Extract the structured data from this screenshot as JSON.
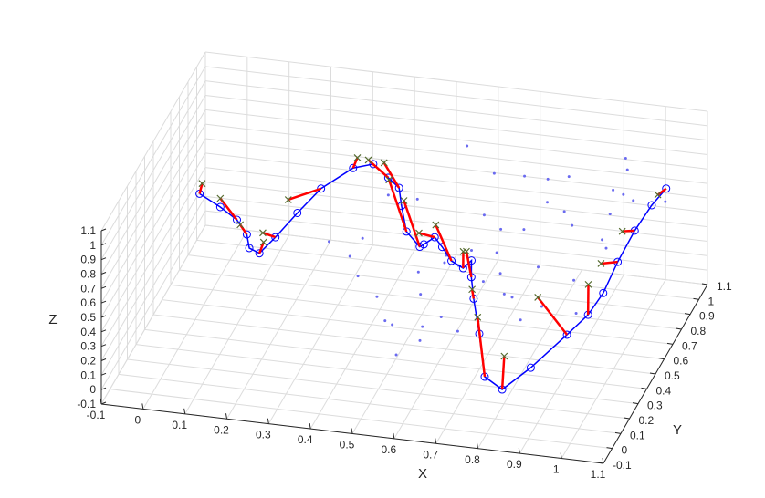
{
  "chart_data": {
    "type": "scatter3d",
    "title": "",
    "xlabel": "X",
    "ylabel": "Y",
    "zlabel": "Z",
    "xlim": [
      -0.1,
      1.1
    ],
    "ylim": [
      -0.1,
      1.1
    ],
    "zlim": [
      -0.1,
      1.1
    ],
    "grid": true,
    "x_ticks": [
      "-0.1",
      "0",
      "0.1",
      "0.2",
      "0.3",
      "0.4",
      "0.5",
      "0.6",
      "0.7",
      "0.8",
      "0.9",
      "1",
      "1.1"
    ],
    "y_ticks": [
      "-0.1",
      "0",
      "0.1",
      "0.2",
      "0.3",
      "0.4",
      "0.5",
      "0.6",
      "0.7",
      "0.8",
      "0.9",
      "1",
      "1.1"
    ],
    "z_ticks": [
      "-0.1",
      "0",
      "0.1",
      "0.2",
      "0.3",
      "0.4",
      "0.5",
      "0.6",
      "0.7",
      "0.8",
      "0.9",
      "1",
      "1.1"
    ],
    "colors": {
      "scatter": "#6a6af0",
      "curve": "#0000ff",
      "arrow": "#ff0000",
      "cross": "#556b2f",
      "grid": "#dcdcdc",
      "axis": "#262626"
    },
    "scatter_points": [
      [
        0.6,
        0.74,
        1.06
      ],
      [
        0.67,
        0.44,
        0.55
      ],
      [
        0.83,
        0.15,
        0.7
      ],
      [
        0.85,
        0.15,
        0.55
      ],
      [
        0.63,
        0.08,
        0.5
      ],
      [
        0.75,
        0.4,
        0.58
      ],
      [
        0.67,
        0.6,
        0.75
      ],
      [
        0.72,
        0.55,
        0.72
      ],
      [
        0.83,
        0.45,
        0.6
      ],
      [
        0.88,
        0.6,
        0.75
      ],
      [
        0.95,
        0.7,
        0.75
      ],
      [
        0.8,
        0.7,
        0.78
      ],
      [
        0.56,
        0.07,
        0.5
      ],
      [
        0.88,
        0.25,
        0.55
      ],
      [
        0.6,
        0.5,
        0.55
      ],
      [
        0.9,
        0.85,
        0.4
      ],
      [
        0.95,
        0.88,
        0.95
      ],
      [
        0.95,
        0.9,
        0.85
      ],
      [
        0.92,
        0.88,
        0.72
      ],
      [
        0.96,
        0.92,
        0.62
      ],
      [
        1.02,
        1.0,
        0.55
      ],
      [
        0.92,
        0.8,
        0.4
      ],
      [
        0.88,
        0.62,
        0.35
      ],
      [
        0.5,
        0.65,
        0.75
      ],
      [
        0.78,
        0.3,
        0.55
      ],
      [
        0.73,
        0.3,
        0.62
      ],
      [
        0.65,
        0.4,
        0.6
      ],
      [
        0.76,
        0.9,
        0.72
      ],
      [
        0.82,
        0.8,
        0.62
      ],
      [
        0.74,
        0.72,
        0.55
      ],
      [
        0.7,
        0.6,
        0.5
      ],
      [
        0.65,
        0.55,
        0.55
      ],
      [
        0.6,
        0.48,
        0.52
      ],
      [
        0.55,
        0.42,
        0.5
      ],
      [
        0.58,
        0.3,
        0.48
      ],
      [
        0.65,
        0.2,
        0.45
      ],
      [
        0.7,
        0.15,
        0.42
      ],
      [
        0.62,
        0.1,
        0.38
      ],
      [
        0.58,
        0.02,
        0.35
      ],
      [
        0.52,
        0.18,
        0.4
      ],
      [
        0.48,
        0.28,
        0.45
      ],
      [
        0.42,
        0.35,
        0.5
      ],
      [
        0.4,
        0.5,
        0.6
      ],
      [
        0.38,
        0.45,
        0.52
      ],
      [
        0.32,
        0.5,
        0.55
      ],
      [
        0.42,
        0.7,
        0.7
      ],
      [
        0.8,
        0.95,
        0.7
      ],
      [
        0.93,
        0.95,
        0.62
      ],
      [
        0.9,
        0.55,
        0.2
      ],
      [
        0.7,
        0.92,
        0.7
      ],
      [
        0.64,
        0.86,
        0.76
      ]
    ],
    "curve_points": [
      [
        0.0,
        0.55,
        0.72
      ],
      [
        0.06,
        0.5,
        0.7
      ],
      [
        0.11,
        0.45,
        0.68
      ],
      [
        0.14,
        0.42,
        0.62
      ],
      [
        0.15,
        0.4,
        0.55
      ],
      [
        0.17,
        0.42,
        0.5
      ],
      [
        0.2,
        0.46,
        0.58
      ],
      [
        0.24,
        0.52,
        0.7
      ],
      [
        0.28,
        0.6,
        0.8
      ],
      [
        0.34,
        0.68,
        0.88
      ],
      [
        0.38,
        0.72,
        0.88
      ],
      [
        0.42,
        0.7,
        0.82
      ],
      [
        0.45,
        0.68,
        0.78
      ],
      [
        0.46,
        0.66,
        0.68
      ],
      [
        0.48,
        0.62,
        0.55
      ],
      [
        0.52,
        0.58,
        0.5
      ],
      [
        0.53,
        0.58,
        0.52
      ],
      [
        0.56,
        0.56,
        0.6
      ],
      [
        0.58,
        0.55,
        0.55
      ],
      [
        0.6,
        0.56,
        0.45
      ],
      [
        0.63,
        0.55,
        0.42
      ],
      [
        0.65,
        0.55,
        0.48
      ],
      [
        0.66,
        0.5,
        0.42
      ],
      [
        0.68,
        0.43,
        0.35
      ],
      [
        0.71,
        0.35,
        0.2
      ],
      [
        0.75,
        0.22,
        0.05
      ],
      [
        0.8,
        0.18,
        0.02
      ],
      [
        0.86,
        0.22,
        0.15
      ],
      [
        0.93,
        0.3,
        0.32
      ],
      [
        0.97,
        0.35,
        0.42
      ],
      [
        1.0,
        0.38,
        0.55
      ],
      [
        1.02,
        0.45,
        0.7
      ],
      [
        1.04,
        0.55,
        0.82
      ],
      [
        1.06,
        0.65,
        0.9
      ],
      [
        1.08,
        0.72,
        0.95
      ]
    ],
    "arrow_tip_points": [
      [
        0.0,
        0.58,
        0.76
      ],
      [
        0.06,
        0.5,
        0.76
      ],
      [
        0.12,
        0.44,
        0.66
      ],
      [
        0.18,
        0.42,
        0.58
      ],
      [
        0.17,
        0.46,
        0.6
      ],
      [
        0.21,
        0.56,
        0.74
      ],
      [
        0.34,
        0.73,
        0.9
      ],
      [
        0.36,
        0.76,
        0.86
      ],
      [
        0.41,
        0.7,
        0.92
      ],
      [
        0.43,
        0.66,
        0.85
      ],
      [
        0.47,
        0.64,
        0.74
      ],
      [
        0.51,
        0.62,
        0.55
      ],
      [
        0.55,
        0.62,
        0.62
      ],
      [
        0.62,
        0.6,
        0.48
      ],
      [
        0.64,
        0.54,
        0.55
      ],
      [
        0.67,
        0.46,
        0.38
      ],
      [
        0.7,
        0.38,
        0.28
      ],
      [
        0.78,
        0.3,
        0.12
      ],
      [
        0.85,
        0.35,
        0.5
      ],
      [
        0.95,
        0.45,
        0.52
      ],
      [
        0.97,
        0.5,
        0.62
      ],
      [
        1.0,
        0.6,
        0.75
      ],
      [
        1.06,
        0.72,
        0.9
      ]
    ]
  }
}
